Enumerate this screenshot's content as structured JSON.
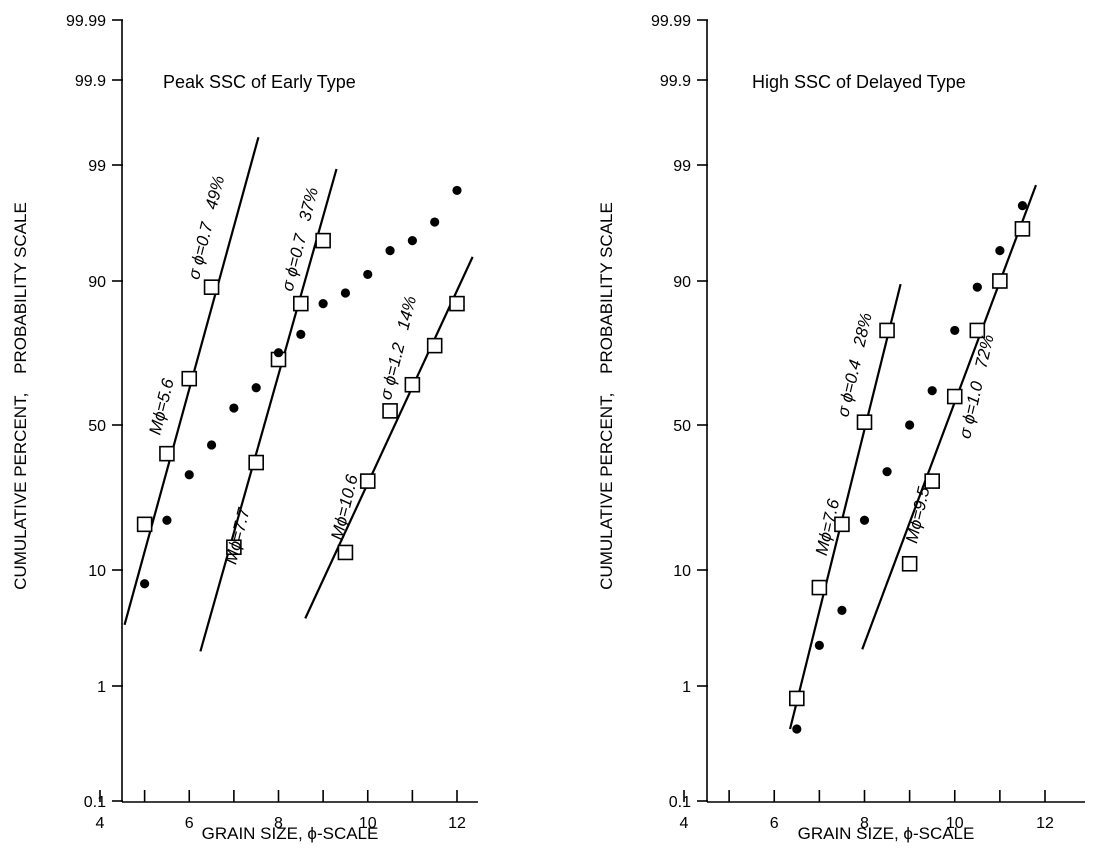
{
  "chart_data": [
    {
      "type": "scatter",
      "title": "Peak SSC of Early Type",
      "xlabel": "GRAIN SIZE,  ϕ-SCALE",
      "ylabel": "CUMULATIVE PERCENT,    PROBABILITY SCALE",
      "y_scale": "probability",
      "xlim": [
        4,
        13
      ],
      "ylim": [
        0.1,
        99.99
      ],
      "x_ticks": [
        4,
        6,
        8,
        10,
        12
      ],
      "x_minor_ticks": [
        5,
        7,
        9,
        11
      ],
      "y_ticks": [
        "0.1",
        "1",
        "10",
        "50",
        "90",
        "99",
        "99.9",
        "99.99"
      ],
      "grid": false,
      "series": [
        {
          "marker": "square",
          "x": [
            5.0,
            5.5,
            6.0,
            6.5
          ],
          "y": [
            19,
            40,
            66,
            89
          ]
        },
        {
          "marker": "square",
          "x": [
            7.0,
            7.5,
            8.0,
            8.5,
            9.0
          ],
          "y": [
            14,
            37,
            72,
            86,
            95
          ]
        },
        {
          "marker": "square",
          "x": [
            9.5,
            10.0,
            10.5,
            11.0,
            11.5,
            12.0
          ],
          "y": [
            13,
            31,
            55,
            64,
            76,
            86
          ]
        },
        {
          "marker": "dot",
          "x": [
            5.0,
            5.5,
            6.0,
            6.5,
            7.0,
            7.5,
            8.0,
            8.5,
            9.0,
            9.5,
            10.0,
            10.5,
            11.0,
            11.5,
            12.0
          ],
          "y": [
            8,
            20,
            33,
            43,
            56,
            63,
            74,
            79,
            86,
            88,
            91,
            94,
            95,
            96.5,
            98.2
          ]
        }
      ],
      "fit_lines": [
        {
          "x": [
            4.55,
            7.55
          ],
          "y": [
            3.8,
            99.5
          ]
        },
        {
          "x": [
            6.25,
            9.3
          ],
          "y": [
            2.2,
            98.9
          ]
        },
        {
          "x": [
            8.6,
            12.35
          ],
          "y": [
            4.3,
            93.3
          ]
        }
      ],
      "annotations": [
        {
          "label": "Mϕ=5.6",
          "x": 5.5,
          "y": 56
        },
        {
          "label": "σ ϕ=0.7   49%",
          "x": 6.5,
          "y": 96
        },
        {
          "label": "Mϕ=7.7",
          "x": 7.2,
          "y": 16
        },
        {
          "label": "σ ϕ=0.7   37%",
          "x": 8.6,
          "y": 95
        },
        {
          "label": "Mϕ=10.6",
          "x": 9.6,
          "y": 23
        },
        {
          "label": "σ ϕ=1.2   14%",
          "x": 10.8,
          "y": 75
        }
      ]
    },
    {
      "type": "scatter",
      "title": "High SSC of Delayed Type",
      "xlabel": "GRAIN SIZE,  ϕ-SCALE",
      "ylabel": "CUMULATIVE PERCENT,    PROBABILITY SCALE",
      "y_scale": "probability",
      "xlim": [
        4,
        13
      ],
      "ylim": [
        0.1,
        99.99
      ],
      "x_ticks": [
        4,
        6,
        8,
        10,
        12
      ],
      "x_minor_ticks": [
        5,
        7,
        9,
        11
      ],
      "y_ticks": [
        "0.1",
        "1",
        "10",
        "50",
        "90",
        "99",
        "99.9",
        "99.99"
      ],
      "grid": false,
      "series": [
        {
          "marker": "square",
          "x": [
            6.5,
            7.0,
            7.5,
            8.0,
            8.5
          ],
          "y": [
            0.8,
            7.5,
            19,
            51,
            80
          ]
        },
        {
          "marker": "square",
          "x": [
            9.0,
            9.5,
            10.0,
            10.5,
            11.0,
            11.5
          ],
          "y": [
            11,
            31,
            60,
            80,
            90,
            96
          ]
        },
        {
          "marker": "dot",
          "x": [
            6.5,
            7.0,
            7.5,
            8.0,
            8.5,
            9.0,
            9.5,
            10.0,
            10.5,
            11.0,
            11.5
          ],
          "y": [
            0.45,
            2.5,
            5,
            20,
            34,
            50,
            62,
            80,
            89,
            94,
            97.5
          ]
        }
      ],
      "fit_lines": [
        {
          "x": [
            6.35,
            8.8
          ],
          "y": [
            0.45,
            89.5
          ]
        },
        {
          "x": [
            7.95,
            11.8
          ],
          "y": [
            2.3,
            98.4
          ]
        }
      ],
      "annotations": [
        {
          "label": "Mϕ=7.6",
          "x": 7.3,
          "y": 18
        },
        {
          "label": "σ ϕ=0.4   28%",
          "x": 7.9,
          "y": 70
        },
        {
          "label": "Mϕ=9.5",
          "x": 9.3,
          "y": 21
        },
        {
          "label": "σ ϕ=1.0   72%",
          "x": 10.6,
          "y": 63
        }
      ]
    }
  ]
}
